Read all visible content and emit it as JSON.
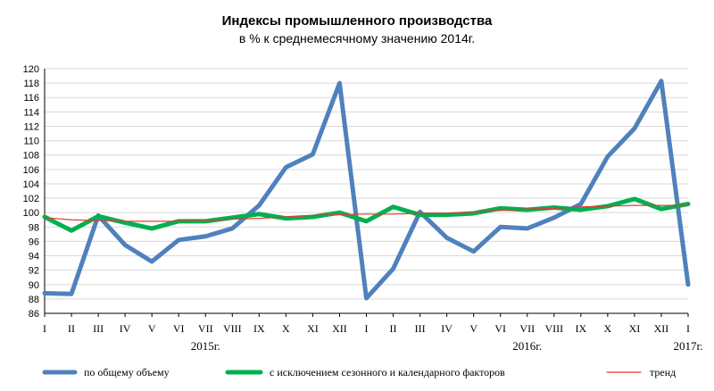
{
  "chart_data": {
    "type": "line",
    "title": "Индексы промышленного производства",
    "subtitle": "в % к среднемесячному значению 2014г.",
    "categories": [
      "I",
      "II",
      "III",
      "IV",
      "V",
      "VI",
      "VII",
      "VIII",
      "IX",
      "X",
      "XI",
      "XII",
      "I",
      "II",
      "III",
      "IV",
      "V",
      "VI",
      "VII",
      "VIII",
      "IX",
      "X",
      "XI",
      "XII",
      "I"
    ],
    "year_labels": [
      {
        "label": "2015г.",
        "index": 6
      },
      {
        "label": "2016г.",
        "index": 18
      },
      {
        "label": "2017г.",
        "index": 24
      }
    ],
    "ylim": [
      86,
      120
    ],
    "ytick_step": 2,
    "grid": true,
    "legend_position": "bottom",
    "series": [
      {
        "name": "по общему объему",
        "color": "#4f81bd",
        "values": [
          88.8,
          88.7,
          99.6,
          95.5,
          93.2,
          96.2,
          96.7,
          97.8,
          101.0,
          106.3,
          108.1,
          118.0,
          88.1,
          92.2,
          100.1,
          96.5,
          94.6,
          98.0,
          97.8,
          99.3,
          101.2,
          107.8,
          111.7,
          118.3,
          90.0
        ]
      },
      {
        "name": "с исключением сезонного и календарного факторов",
        "color": "#00b050",
        "values": [
          99.4,
          97.5,
          99.5,
          98.6,
          97.8,
          98.8,
          98.8,
          99.3,
          99.8,
          99.2,
          99.4,
          100.0,
          98.8,
          100.8,
          99.7,
          99.7,
          99.9,
          100.6,
          100.4,
          100.7,
          100.4,
          100.9,
          101.9,
          100.5,
          101.2
        ]
      },
      {
        "name": "тренд",
        "color": "#e03c31",
        "values": [
          99.3,
          99.0,
          98.9,
          98.8,
          98.8,
          98.8,
          98.9,
          99.1,
          99.2,
          99.4,
          99.6,
          99.7,
          99.8,
          99.8,
          99.9,
          99.9,
          100.1,
          100.3,
          100.5,
          100.6,
          100.8,
          100.9,
          101.0,
          101.0,
          101.0
        ]
      }
    ]
  }
}
